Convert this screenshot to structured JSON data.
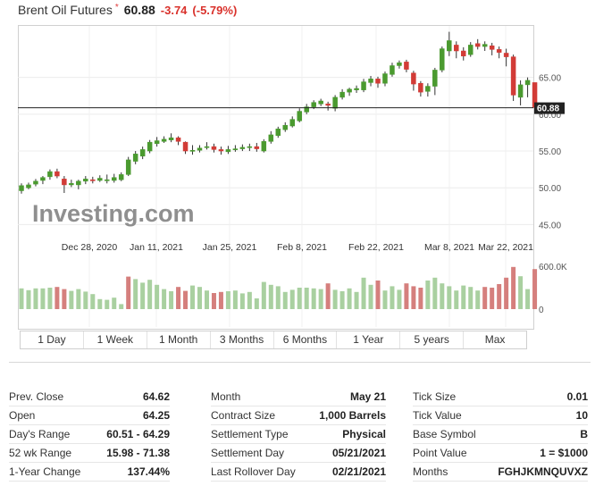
{
  "header": {
    "title": "Brent Oil Futures",
    "star": "*",
    "price": "60.88",
    "change": "-3.74",
    "change_pct": "(-5.79%)"
  },
  "watermark": "Investing.com",
  "colors": {
    "up": "#4a9a2f",
    "down": "#d23b36",
    "vol_up": "#a9d0a0",
    "vol_down": "#d57f7d"
  },
  "chart_data": {
    "type": "candlestick",
    "y_ticks": [
      "65.00",
      "60.00",
      "55.00",
      "50.00",
      "45.00"
    ],
    "y_range": [
      42.5,
      72
    ],
    "current_price_label": "60.88",
    "current_price": 60.88,
    "x_labels": [
      "Dec 28, 2020",
      "Jan 11, 2021",
      "Jan 25, 2021",
      "Feb 8, 2021",
      "Feb 22, 2021",
      "Mar 8, 2021",
      "Mar 22, 2021"
    ],
    "volume_ticks": [
      "600.0K",
      "0"
    ],
    "volume_range": [
      0,
      650
    ],
    "candles": [
      [
        49.6,
        50.3,
        49.2,
        50.6
      ],
      [
        50.0,
        50.4,
        49.8,
        50.7
      ],
      [
        50.5,
        50.9,
        50.2,
        51.2
      ],
      [
        51.0,
        51.4,
        50.5,
        51.6
      ],
      [
        51.5,
        52.2,
        51.1,
        52.5
      ],
      [
        52.2,
        51.6,
        51.3,
        52.6
      ],
      [
        51.2,
        50.4,
        49.3,
        51.6
      ],
      [
        50.4,
        50.6,
        50.1,
        51.1
      ],
      [
        50.4,
        50.9,
        49.8,
        51.1
      ],
      [
        50.9,
        51.2,
        50.5,
        51.6
      ],
      [
        51.1,
        51.0,
        50.6,
        51.5
      ],
      [
        51.0,
        51.3,
        50.8,
        51.7
      ],
      [
        51.0,
        51.1,
        50.6,
        51.8
      ],
      [
        51.0,
        51.4,
        50.7,
        51.9
      ],
      [
        51.1,
        51.8,
        50.9,
        52.1
      ],
      [
        51.8,
        53.8,
        51.6,
        54.2
      ],
      [
        53.6,
        54.6,
        53.2,
        55.0
      ],
      [
        54.3,
        55.2,
        53.9,
        55.6
      ],
      [
        55.0,
        56.2,
        54.7,
        56.5
      ],
      [
        56.0,
        56.4,
        55.6,
        56.9
      ],
      [
        56.3,
        56.6,
        56.1,
        57.0
      ],
      [
        56.5,
        56.8,
        56.2,
        57.4
      ],
      [
        56.8,
        56.3,
        55.8,
        57.0
      ],
      [
        56.2,
        55.0,
        54.6,
        56.3
      ],
      [
        55.1,
        55.1,
        54.5,
        55.8
      ],
      [
        55.1,
        55.4,
        54.8,
        55.8
      ],
      [
        55.5,
        55.6,
        55.2,
        56.2
      ],
      [
        55.6,
        55.2,
        54.8,
        56.0
      ],
      [
        55.2,
        55.0,
        54.5,
        55.6
      ],
      [
        54.9,
        55.2,
        54.6,
        55.7
      ],
      [
        55.2,
        55.3,
        54.9,
        55.8
      ],
      [
        55.3,
        55.5,
        55.0,
        55.9
      ],
      [
        55.5,
        55.6,
        55.0,
        56.0
      ],
      [
        55.6,
        55.3,
        54.9,
        56.1
      ],
      [
        55.0,
        56.3,
        54.8,
        56.6
      ],
      [
        56.3,
        57.2,
        56.0,
        57.7
      ],
      [
        57.1,
        58.0,
        56.8,
        58.3
      ],
      [
        57.9,
        58.5,
        57.6,
        58.9
      ],
      [
        58.4,
        59.3,
        58.2,
        59.7
      ],
      [
        59.1,
        60.4,
        58.9,
        60.8
      ],
      [
        60.3,
        61.0,
        60.0,
        61.4
      ],
      [
        61.0,
        61.6,
        60.7,
        61.9
      ],
      [
        61.4,
        61.8,
        61.1,
        62.1
      ],
      [
        61.4,
        61.2,
        60.5,
        61.7
      ],
      [
        60.8,
        62.3,
        60.4,
        62.6
      ],
      [
        62.3,
        63.0,
        62.0,
        63.4
      ],
      [
        63.0,
        63.4,
        62.5,
        63.6
      ],
      [
        63.3,
        63.5,
        62.9,
        63.9
      ],
      [
        63.3,
        64.4,
        63.0,
        64.8
      ],
      [
        64.3,
        64.8,
        63.8,
        65.2
      ],
      [
        64.8,
        64.2,
        63.6,
        65.1
      ],
      [
        64.2,
        65.5,
        63.8,
        65.8
      ],
      [
        65.4,
        66.6,
        65.1,
        67.0
      ],
      [
        66.6,
        67.0,
        66.2,
        67.3
      ],
      [
        67.1,
        66.1,
        65.7,
        67.4
      ],
      [
        65.6,
        64.1,
        63.2,
        65.9
      ],
      [
        64.2,
        63.0,
        62.4,
        64.5
      ],
      [
        63.1,
        63.8,
        62.4,
        64.2
      ],
      [
        63.8,
        66.0,
        62.6,
        66.3
      ],
      [
        66.0,
        68.9,
        65.7,
        69.2
      ],
      [
        68.6,
        70.0,
        67.9,
        71.2
      ],
      [
        69.4,
        68.6,
        67.6,
        69.9
      ],
      [
        68.6,
        67.9,
        67.3,
        69.1
      ],
      [
        68.1,
        69.4,
        67.8,
        69.8
      ],
      [
        69.6,
        69.2,
        68.8,
        70.2
      ],
      [
        69.2,
        69.5,
        68.6,
        69.9
      ],
      [
        69.3,
        68.8,
        68.0,
        69.7
      ],
      [
        68.8,
        68.4,
        67.6,
        69.2
      ],
      [
        68.3,
        67.8,
        66.5,
        68.9
      ],
      [
        67.8,
        62.6,
        61.8,
        68.1
      ],
      [
        62.3,
        64.0,
        61.2,
        64.6
      ],
      [
        64.0,
        64.6,
        62.3,
        65.0
      ],
      [
        64.3,
        60.9,
        60.5,
        64.3
      ]
    ],
    "volumes": [
      [
        290,
        1
      ],
      [
        265,
        1
      ],
      [
        290,
        1
      ],
      [
        290,
        1
      ],
      [
        300,
        1
      ],
      [
        310,
        0
      ],
      [
        280,
        0
      ],
      [
        255,
        1
      ],
      [
        280,
        1
      ],
      [
        245,
        1
      ],
      [
        210,
        1
      ],
      [
        140,
        1
      ],
      [
        130,
        1
      ],
      [
        160,
        1
      ],
      [
        70,
        1
      ],
      [
        455,
        0
      ],
      [
        420,
        1
      ],
      [
        370,
        1
      ],
      [
        410,
        1
      ],
      [
        340,
        1
      ],
      [
        280,
        1
      ],
      [
        250,
        1
      ],
      [
        310,
        0
      ],
      [
        255,
        0
      ],
      [
        330,
        1
      ],
      [
        310,
        1
      ],
      [
        260,
        1
      ],
      [
        225,
        0
      ],
      [
        240,
        0
      ],
      [
        250,
        1
      ],
      [
        260,
        1
      ],
      [
        220,
        1
      ],
      [
        240,
        1
      ],
      [
        150,
        1
      ],
      [
        380,
        1
      ],
      [
        340,
        1
      ],
      [
        320,
        1
      ],
      [
        240,
        1
      ],
      [
        270,
        1
      ],
      [
        300,
        1
      ],
      [
        300,
        1
      ],
      [
        290,
        1
      ],
      [
        280,
        1
      ],
      [
        360,
        0
      ],
      [
        270,
        1
      ],
      [
        250,
        1
      ],
      [
        290,
        1
      ],
      [
        240,
        1
      ],
      [
        440,
        1
      ],
      [
        340,
        1
      ],
      [
        400,
        0
      ],
      [
        260,
        1
      ],
      [
        320,
        1
      ],
      [
        270,
        1
      ],
      [
        360,
        0
      ],
      [
        320,
        0
      ],
      [
        300,
        0
      ],
      [
        400,
        1
      ],
      [
        440,
        1
      ],
      [
        360,
        1
      ],
      [
        320,
        1
      ],
      [
        260,
        1
      ],
      [
        330,
        1
      ],
      [
        310,
        1
      ],
      [
        260,
        1
      ],
      [
        310,
        0
      ],
      [
        300,
        0
      ],
      [
        350,
        0
      ],
      [
        440,
        0
      ],
      [
        590,
        0
      ],
      [
        460,
        1
      ],
      [
        280,
        1
      ],
      [
        560,
        0
      ]
    ]
  },
  "time_ranges": [
    "1 Day",
    "1 Week",
    "1 Month",
    "3 Months",
    "6 Months",
    "1 Year",
    "5 years",
    "Max"
  ],
  "stats": {
    "col1": [
      {
        "label": "Prev. Close",
        "value": "64.62"
      },
      {
        "label": "Open",
        "value": "64.25"
      },
      {
        "label": "Day's Range",
        "value": "60.51 - 64.29"
      },
      {
        "label": "52 wk Range",
        "value": "15.98 - 71.38"
      },
      {
        "label": "1-Year Change",
        "value": "137.44%"
      }
    ],
    "col2": [
      {
        "label": "Month",
        "value": "May 21"
      },
      {
        "label": "Contract Size",
        "value": "1,000 Barrels"
      },
      {
        "label": "Settlement Type",
        "value": "Physical"
      },
      {
        "label": "Settlement Day",
        "value": "05/21/2021"
      },
      {
        "label": "Last Rollover Day",
        "value": "02/21/2021"
      }
    ],
    "col3": [
      {
        "label": "Tick Size",
        "value": "0.01"
      },
      {
        "label": "Tick Value",
        "value": "10"
      },
      {
        "label": "Base Symbol",
        "value": "B"
      },
      {
        "label": "Point Value",
        "value": "1 = $1000"
      },
      {
        "label": "Months",
        "value": "FGHJKMNQUVXZ"
      }
    ]
  }
}
